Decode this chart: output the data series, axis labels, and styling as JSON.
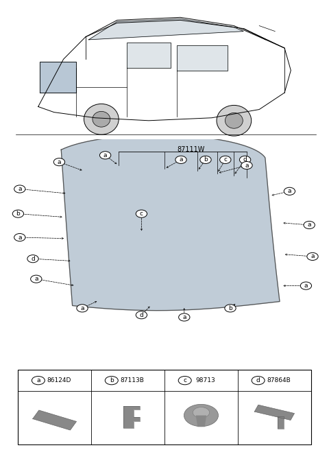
{
  "bg_color": "#ffffff",
  "part_label": "87111W",
  "parts": [
    {
      "letter": "a",
      "code": "86124D"
    },
    {
      "letter": "b",
      "code": "87113B"
    },
    {
      "letter": "c",
      "code": "98713"
    },
    {
      "letter": "d",
      "code": "87864B"
    }
  ]
}
